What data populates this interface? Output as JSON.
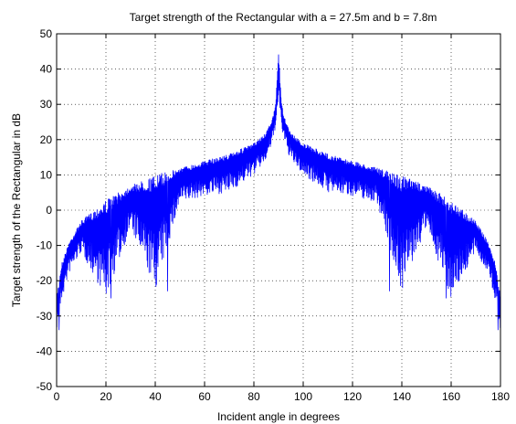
{
  "chart_data": {
    "type": "line",
    "title": "Target strength of the Rectangular with a = 27.5m and b = 7.8m",
    "xlabel": "Incident angle in degrees",
    "ylabel": "Target strength of the Rectangular in dB",
    "xlim": [
      0,
      180
    ],
    "ylim": [
      -50,
      50
    ],
    "xticks": [
      "0",
      "20",
      "40",
      "60",
      "80",
      "100",
      "120",
      "140",
      "160",
      "180"
    ],
    "yticks": [
      "50",
      "40",
      "30",
      "20",
      "10",
      "0",
      "-10",
      "-20",
      "-30",
      "-40",
      "-50"
    ],
    "grid": true,
    "line_color": "#0000ff",
    "series": [
      {
        "description_points": {
          "x": [
            0,
            1,
            2,
            5,
            10,
            20,
            30,
            40,
            50,
            60,
            70,
            80,
            85,
            88,
            89,
            90,
            91,
            92,
            95,
            100,
            110,
            120,
            130,
            140,
            150,
            160,
            170,
            175,
            178,
            179,
            180
          ],
          "upper": [
            -24,
            -20,
            -15,
            -9,
            -3,
            3,
            7,
            10,
            12,
            14,
            16,
            19,
            22,
            27,
            32,
            46,
            32,
            27,
            22,
            19,
            16,
            14,
            12,
            10,
            7,
            3,
            -3,
            -9,
            -15,
            -20,
            -24
          ],
          "lower": [
            -34,
            -30,
            -26,
            -18,
            -12,
            -25,
            -5,
            -23,
            2,
            4,
            5,
            10,
            14,
            20,
            25,
            29,
            25,
            20,
            14,
            10,
            5,
            4,
            2,
            -23,
            -5,
            -25,
            -12,
            -18,
            -26,
            -30,
            -34
          ]
        }
      }
    ],
    "deep_nulls": [
      {
        "x": 22,
        "y": -25
      },
      {
        "x": 45,
        "y": -23
      },
      {
        "x": 135,
        "y": -23
      },
      {
        "x": 158,
        "y": -25
      },
      {
        "x": 1,
        "y": -34
      },
      {
        "x": 179,
        "y": -34
      }
    ]
  }
}
